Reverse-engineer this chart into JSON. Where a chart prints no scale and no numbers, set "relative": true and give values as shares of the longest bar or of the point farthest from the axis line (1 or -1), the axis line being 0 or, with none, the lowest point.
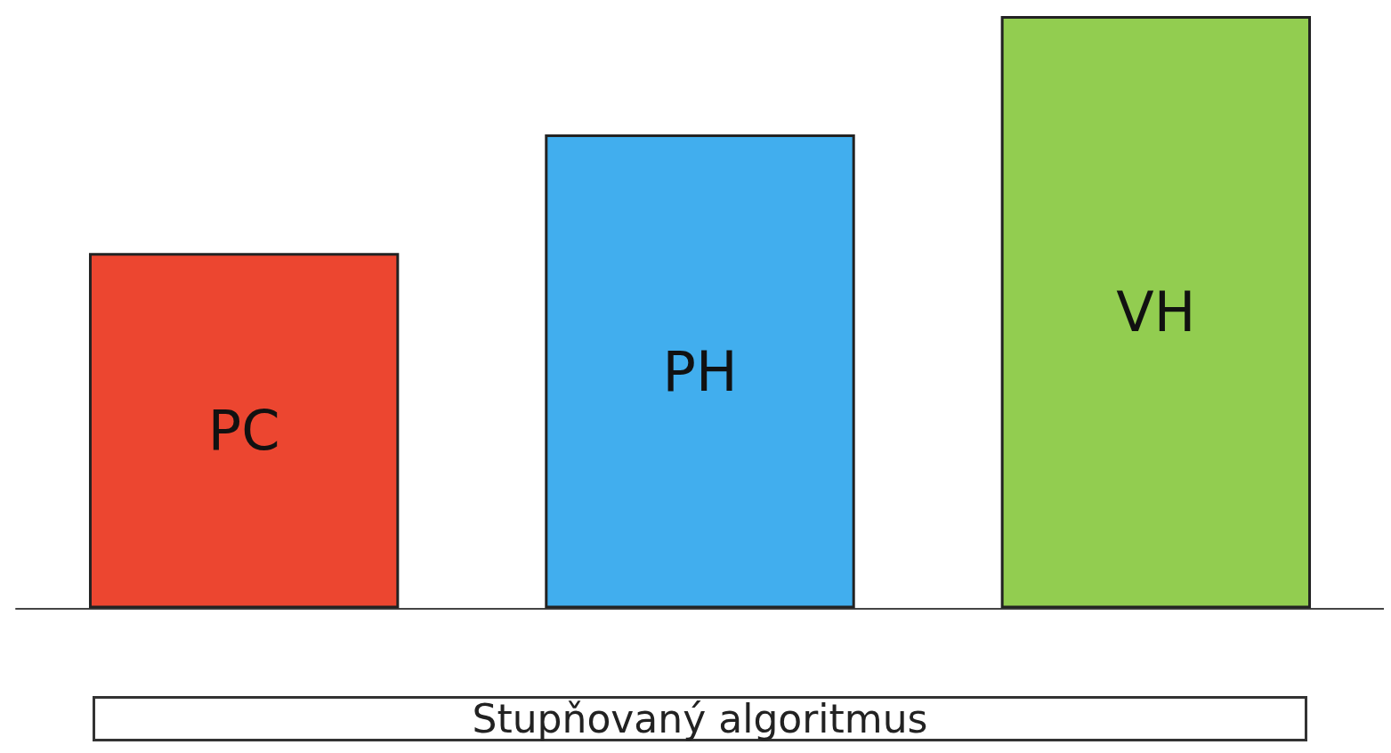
{
  "chart_data": {
    "type": "bar",
    "relative": true,
    "xlabel": "Stupňovaný algoritmus",
    "categories": [
      "PC",
      "PH",
      "VH"
    ],
    "values": [
      0.6,
      0.8,
      1
    ],
    "colors": [
      "#ec4630",
      "#41aeee",
      "#92cd50"
    ]
  }
}
